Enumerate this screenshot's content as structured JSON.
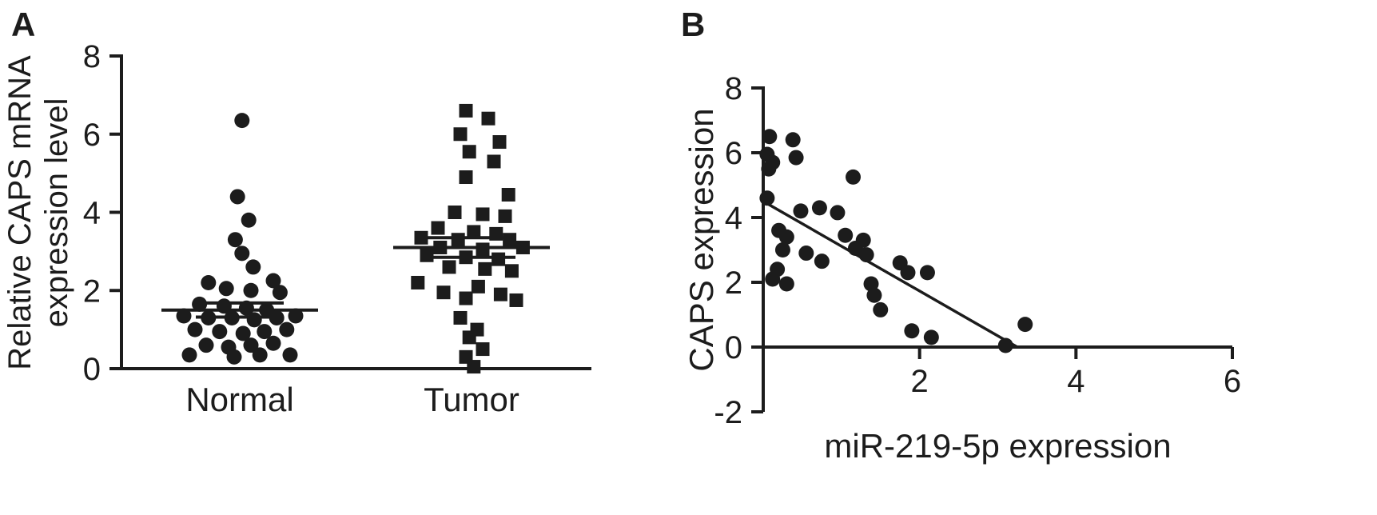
{
  "figure": {
    "panels": [
      {
        "label": "A"
      },
      {
        "label": "B"
      }
    ]
  },
  "colors": {
    "marker": "#1c1c1c",
    "axis": "#1c1c1c",
    "background": "#ffffff"
  },
  "chart_data": [
    {
      "type": "scatter",
      "subtype": "column-scatter",
      "title": "",
      "ylabel_lines": [
        "Relative CAPS mRNA",
        "expression level"
      ],
      "ylim": [
        0,
        8
      ],
      "yticks": [
        0,
        2,
        4,
        6,
        8
      ],
      "grid": false,
      "groups": [
        {
          "name": "Normal",
          "marker": "circle",
          "mean": 1.5,
          "sem": 0.18,
          "points": [
            [
              0.02,
              6.35
            ],
            [
              -0.02,
              4.4
            ],
            [
              0.08,
              3.8
            ],
            [
              -0.04,
              3.3
            ],
            [
              0.02,
              2.95
            ],
            [
              0.12,
              2.6
            ],
            [
              -0.28,
              2.2
            ],
            [
              0.3,
              2.25
            ],
            [
              -0.12,
              2.05
            ],
            [
              0.1,
              2.0
            ],
            [
              0.36,
              1.95
            ],
            [
              -0.36,
              1.65
            ],
            [
              -0.14,
              1.6
            ],
            [
              0.06,
              1.55
            ],
            [
              0.24,
              1.5
            ],
            [
              -0.5,
              1.35
            ],
            [
              -0.28,
              1.3
            ],
            [
              -0.07,
              1.3
            ],
            [
              0.13,
              1.25
            ],
            [
              0.33,
              1.3
            ],
            [
              0.5,
              1.35
            ],
            [
              -0.4,
              1.0
            ],
            [
              -0.18,
              0.95
            ],
            [
              0.03,
              0.9
            ],
            [
              0.22,
              0.95
            ],
            [
              0.42,
              1.0
            ],
            [
              -0.3,
              0.6
            ],
            [
              -0.1,
              0.55
            ],
            [
              0.1,
              0.6
            ],
            [
              0.3,
              0.65
            ],
            [
              -0.45,
              0.35
            ],
            [
              -0.05,
              0.3
            ],
            [
              0.18,
              0.35
            ],
            [
              0.45,
              0.35
            ]
          ]
        },
        {
          "name": "Tumor",
          "marker": "square",
          "mean": 3.1,
          "sem": 0.25,
          "points": [
            [
              -0.05,
              6.6
            ],
            [
              0.15,
              6.4
            ],
            [
              -0.1,
              6.0
            ],
            [
              0.25,
              5.8
            ],
            [
              -0.02,
              5.55
            ],
            [
              0.2,
              5.3
            ],
            [
              -0.05,
              4.9
            ],
            [
              0.33,
              4.45
            ],
            [
              -0.15,
              4.0
            ],
            [
              0.1,
              3.95
            ],
            [
              0.3,
              3.9
            ],
            [
              -0.3,
              3.6
            ],
            [
              0.02,
              3.5
            ],
            [
              0.22,
              3.45
            ],
            [
              -0.45,
              3.35
            ],
            [
              -0.12,
              3.3
            ],
            [
              0.34,
              3.3
            ],
            [
              -0.28,
              3.1
            ],
            [
              0.1,
              3.05
            ],
            [
              0.46,
              3.1
            ],
            [
              -0.4,
              2.9
            ],
            [
              -0.05,
              2.85
            ],
            [
              0.24,
              2.8
            ],
            [
              -0.2,
              2.6
            ],
            [
              0.12,
              2.55
            ],
            [
              0.36,
              2.5
            ],
            [
              -0.48,
              2.2
            ],
            [
              0.06,
              2.1
            ],
            [
              -0.25,
              1.95
            ],
            [
              0.26,
              1.9
            ],
            [
              -0.05,
              1.8
            ],
            [
              0.4,
              1.75
            ],
            [
              -0.1,
              1.3
            ],
            [
              0.05,
              1.0
            ],
            [
              -0.02,
              0.8
            ],
            [
              0.1,
              0.5
            ],
            [
              -0.05,
              0.3
            ],
            [
              0.02,
              0.05
            ]
          ]
        }
      ]
    },
    {
      "type": "scatter",
      "title": "",
      "xlabel": "miR-219-5p expression",
      "ylabel": "CAPS expression",
      "xlim": [
        0,
        6
      ],
      "ylim": [
        -2,
        8
      ],
      "xticks": [
        2,
        4,
        6
      ],
      "yticks": [
        -2,
        0,
        2,
        4,
        6,
        8
      ],
      "grid": false,
      "points": [
        [
          0.08,
          6.5
        ],
        [
          0.05,
          5.95
        ],
        [
          0.12,
          5.7
        ],
        [
          0.07,
          5.5
        ],
        [
          0.05,
          4.6
        ],
        [
          0.38,
          6.4
        ],
        [
          0.42,
          5.85
        ],
        [
          0.2,
          3.6
        ],
        [
          0.3,
          3.4
        ],
        [
          0.25,
          3.0
        ],
        [
          0.18,
          2.4
        ],
        [
          0.12,
          2.1
        ],
        [
          0.3,
          1.95
        ],
        [
          0.48,
          4.2
        ],
        [
          0.55,
          2.9
        ],
        [
          0.72,
          4.3
        ],
        [
          0.75,
          2.65
        ],
        [
          0.95,
          4.15
        ],
        [
          1.05,
          3.45
        ],
        [
          1.15,
          5.25
        ],
        [
          1.18,
          3.05
        ],
        [
          1.28,
          3.3
        ],
        [
          1.32,
          2.85
        ],
        [
          1.38,
          1.95
        ],
        [
          1.42,
          1.6
        ],
        [
          1.5,
          1.15
        ],
        [
          1.75,
          2.6
        ],
        [
          1.85,
          2.3
        ],
        [
          1.9,
          0.5
        ],
        [
          2.1,
          2.3
        ],
        [
          2.15,
          0.3
        ],
        [
          3.1,
          0.05
        ],
        [
          3.35,
          0.7
        ]
      ],
      "regression": {
        "x1": 0,
        "y1": 4.5,
        "x2": 3.25,
        "y2": 0
      }
    }
  ]
}
